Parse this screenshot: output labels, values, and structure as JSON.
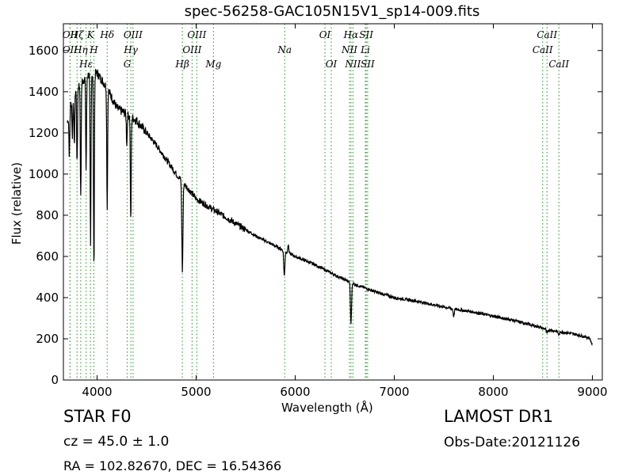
{
  "title": "spec-56258-GAC105N15V1_sp14-009.fits",
  "ylabel": "Flux (relative)",
  "xlabel": "Wavelength (Å)",
  "info": {
    "classification": "STAR   F0",
    "survey": "LAMOST DR1",
    "cz": "cz = 45.0  ± 1.0",
    "obs_date": "Obs-Date:20121126",
    "coords": "RA = 102.82670, DEC = 16.54366"
  },
  "chart_data": {
    "type": "line",
    "xlim": [
      3660,
      9100
    ],
    "ylim": [
      0,
      1730
    ],
    "xticks": [
      4000,
      5000,
      6000,
      7000,
      8000,
      9000
    ],
    "yticks": [
      0,
      200,
      400,
      600,
      800,
      1000,
      1200,
      1400,
      1600
    ],
    "line_color": "#000000",
    "marker_color": "#2ca02c",
    "continuum": [
      [
        3700,
        1250
      ],
      [
        3750,
        1380
      ],
      [
        3800,
        1420
      ],
      [
        3900,
        1480
      ],
      [
        4000,
        1490
      ],
      [
        4100,
        1420
      ],
      [
        4200,
        1320
      ],
      [
        4300,
        1290
      ],
      [
        4400,
        1260
      ],
      [
        4500,
        1200
      ],
      [
        4600,
        1140
      ],
      [
        4700,
        1070
      ],
      [
        4800,
        1000
      ],
      [
        4900,
        940
      ],
      [
        5000,
        880
      ],
      [
        5200,
        820
      ],
      [
        5400,
        760
      ],
      [
        5600,
        700
      ],
      [
        5800,
        650
      ],
      [
        6000,
        600
      ],
      [
        6200,
        560
      ],
      [
        6400,
        510
      ],
      [
        6600,
        465
      ],
      [
        6800,
        430
      ],
      [
        7000,
        400
      ],
      [
        7200,
        385
      ],
      [
        7400,
        365
      ],
      [
        7600,
        345
      ],
      [
        7800,
        330
      ],
      [
        8000,
        310
      ],
      [
        8200,
        290
      ],
      [
        8400,
        265
      ],
      [
        8600,
        240
      ],
      [
        8800,
        225
      ],
      [
        8970,
        205
      ],
      [
        9000,
        170
      ]
    ],
    "absorption_lines": [
      {
        "x": 3720,
        "y": 1080
      },
      {
        "x": 3750,
        "y": 1180
      },
      {
        "x": 3770,
        "y": 1140
      },
      {
        "x": 3798,
        "y": 1050
      },
      {
        "x": 3835,
        "y": 880
      },
      {
        "x": 3889,
        "y": 1020
      },
      {
        "x": 3934,
        "y": 640
      },
      {
        "x": 3968,
        "y": 530
      },
      {
        "x": 4102,
        "y": 830
      },
      {
        "x": 4300,
        "y": 1150
      },
      {
        "x": 4340,
        "y": 760
      },
      {
        "x": 4861,
        "y": 530
      },
      {
        "x": 5890,
        "y": 505
      },
      {
        "x": 6563,
        "y": 270
      },
      {
        "x": 7600,
        "y": 310
      },
      {
        "x": 8498,
        "y": 250
      },
      {
        "x": 8542,
        "y": 225
      },
      {
        "x": 8662,
        "y": 220
      }
    ],
    "emission_features": [
      {
        "x": 5930,
        "y": 660
      }
    ],
    "line_markers": [
      {
        "x": 3727,
        "row": 0,
        "label": "OII"
      },
      {
        "x": 3727,
        "row": 1,
        "label": "OII"
      },
      {
        "x": 3798,
        "row": 0,
        "label": "Hζ"
      },
      {
        "x": 3835,
        "row": 1,
        "label": "Hη"
      },
      {
        "x": 3889,
        "row": 2,
        "label": "Hε"
      },
      {
        "x": 3934,
        "row": 0,
        "label": "K"
      },
      {
        "x": 3968,
        "row": 1,
        "label": "H"
      },
      {
        "x": 4102,
        "row": 0,
        "label": "Hδ"
      },
      {
        "x": 4304,
        "row": 2,
        "label": "G"
      },
      {
        "x": 4341,
        "row": 1,
        "label": "Hγ"
      },
      {
        "x": 4363,
        "row": 0,
        "label": "OIII"
      },
      {
        "x": 4861,
        "row": 2,
        "label": "Hβ"
      },
      {
        "x": 4959,
        "row": 1,
        "label": "OIII"
      },
      {
        "x": 5007,
        "row": 0,
        "label": "OIII"
      },
      {
        "x": 5175,
        "row": 2,
        "label": "Mg"
      },
      {
        "x": 5894,
        "row": 1,
        "label": "Na"
      },
      {
        "x": 6300,
        "row": 0,
        "label": "OI"
      },
      {
        "x": 6364,
        "row": 2,
        "label": "OI"
      },
      {
        "x": 6548,
        "row": 1,
        "label": "NII"
      },
      {
        "x": 6563,
        "row": 0,
        "label": "Hα"
      },
      {
        "x": 6583,
        "row": 2,
        "label": "NII"
      },
      {
        "x": 6717,
        "row": 0,
        "label": "SII"
      },
      {
        "x": 6708,
        "row": 1,
        "label": "Li"
      },
      {
        "x": 6731,
        "row": 2,
        "label": "SII"
      },
      {
        "x": 8498,
        "row": 1,
        "label": "CaII"
      },
      {
        "x": 8542,
        "row": 0,
        "label": "CaII"
      },
      {
        "x": 8662,
        "row": 2,
        "label": "CaII"
      }
    ]
  }
}
